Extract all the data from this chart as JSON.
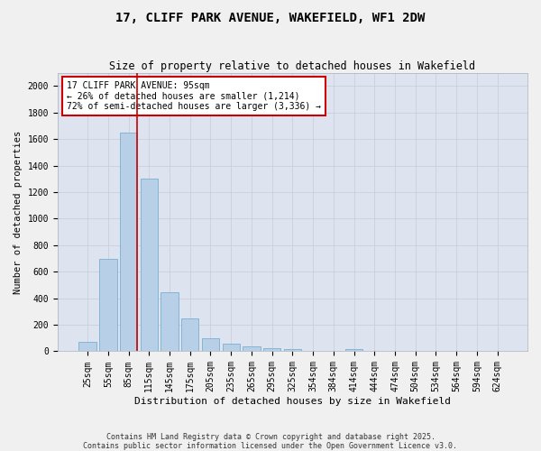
{
  "title": "17, CLIFF PARK AVENUE, WAKEFIELD, WF1 2DW",
  "subtitle": "Size of property relative to detached houses in Wakefield",
  "xlabel": "Distribution of detached houses by size in Wakefield",
  "ylabel": "Number of detached properties",
  "categories": [
    "25sqm",
    "55sqm",
    "85sqm",
    "115sqm",
    "145sqm",
    "175sqm",
    "205sqm",
    "235sqm",
    "265sqm",
    "295sqm",
    "325sqm",
    "354sqm",
    "384sqm",
    "414sqm",
    "444sqm",
    "474sqm",
    "504sqm",
    "534sqm",
    "564sqm",
    "594sqm",
    "624sqm"
  ],
  "values": [
    70,
    700,
    1650,
    1300,
    445,
    250,
    100,
    55,
    35,
    25,
    20,
    0,
    0,
    20,
    0,
    0,
    0,
    0,
    0,
    0,
    0
  ],
  "bar_color": "#b8cfe8",
  "bar_edge_color": "#7aaed0",
  "vline_x_index": 2,
  "vline_color": "#cc0000",
  "annotation_text": "17 CLIFF PARK AVENUE: 95sqm\n← 26% of detached houses are smaller (1,214)\n72% of semi-detached houses are larger (3,336) →",
  "annotation_box_color": "#cc0000",
  "annotation_box_facecolor": "white",
  "ylim": [
    0,
    2100
  ],
  "yticks": [
    0,
    200,
    400,
    600,
    800,
    1000,
    1200,
    1400,
    1600,
    1800,
    2000
  ],
  "grid_color": "#c5ccd8",
  "background_color": "#dde4ef",
  "fig_facecolor": "#f0f0f0",
  "footer_text": "Contains HM Land Registry data © Crown copyright and database right 2025.\nContains public sector information licensed under the Open Government Licence v3.0.",
  "title_fontsize": 10,
  "subtitle_fontsize": 8.5,
  "xlabel_fontsize": 8,
  "ylabel_fontsize": 7.5,
  "tick_fontsize": 7,
  "annotation_fontsize": 7,
  "footer_fontsize": 6
}
